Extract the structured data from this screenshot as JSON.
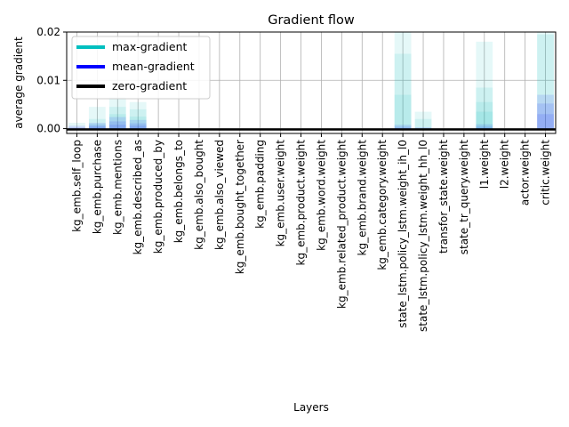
{
  "chart_data": {
    "type": "bar",
    "title": "Gradient flow",
    "xlabel": "Layers",
    "ylabel": "average gradient",
    "ylim": [
      -0.001,
      0.02
    ],
    "yticks": [
      "0.00",
      "0.01",
      "0.02"
    ],
    "ytick_values": [
      0.0,
      0.01,
      0.02
    ],
    "grid": true,
    "legend_position": "top-left",
    "categories": [
      "kg_emb.self_loop",
      "kg_emb.purchase",
      "kg_emb.mentions",
      "kg_emb.described_as",
      "kg_emb.produced_by",
      "kg_emb.belongs_to",
      "kg_emb.also_bought",
      "kg_emb.also_viewed",
      "kg_emb.bought_together",
      "kg_emb.padding",
      "kg_emb.user.weight",
      "kg_emb.product.weight",
      "kg_emb.word.weight",
      "kg_emb.related_product.weight",
      "kg_emb.brand.weight",
      "kg_emb.category.weight",
      "state_lstm.policy_lstm.weight_ih_l0",
      "state_lstm.policy_lstm.weight_hh_l0",
      "transfor_state.weight",
      "state_tr_query.weight",
      "l1.weight",
      "l2.weight",
      "actor.weight",
      "critic.weight"
    ],
    "series": [
      {
        "name": "max-gradient",
        "color": "#00bfbf",
        "opacity": 0.1,
        "max_layers": [
          [
            0.0012
          ],
          [
            0.0045,
            0.002,
            0.001
          ],
          [
            0.0065,
            0.0045,
            0.003
          ],
          [
            0.0055,
            0.004,
            0.0025
          ],
          [
            0
          ],
          [
            0
          ],
          [
            0
          ],
          [
            0
          ],
          [
            0
          ],
          [
            0
          ],
          [
            0
          ],
          [
            0
          ],
          [
            0
          ],
          [
            0
          ],
          [
            0
          ],
          [
            0
          ],
          [
            0.02,
            0.0155,
            0.007
          ],
          [
            0.0035,
            0.002
          ],
          [
            0
          ],
          [
            0
          ],
          [
            0.018,
            0.0085,
            0.0055,
            0.0035
          ],
          [
            0
          ],
          [
            0
          ],
          [
            0.02,
            0.0195
          ]
        ]
      },
      {
        "name": "mean-gradient",
        "color": "#0000ff",
        "opacity": 0.1,
        "mean_layers": [
          [
            0.0006,
            0.0003
          ],
          [
            0.0012,
            0.0007,
            0.0004
          ],
          [
            0.0024,
            0.0015,
            0.0008
          ],
          [
            0.0018,
            0.0011,
            0.0006
          ],
          [
            0
          ],
          [
            0
          ],
          [
            0
          ],
          [
            0
          ],
          [
            0
          ],
          [
            0
          ],
          [
            0
          ],
          [
            0
          ],
          [
            0
          ],
          [
            0
          ],
          [
            0
          ],
          [
            0
          ],
          [
            0.0008,
            0.0004
          ],
          [
            0.0003
          ],
          [
            0
          ],
          [
            0
          ],
          [
            0.0009,
            0.0004
          ],
          [
            0
          ],
          [
            0
          ],
          [
            0.007,
            0.0052,
            0.003
          ]
        ]
      },
      {
        "name": "zero-gradient",
        "color": "#000000",
        "value": 0
      }
    ]
  }
}
